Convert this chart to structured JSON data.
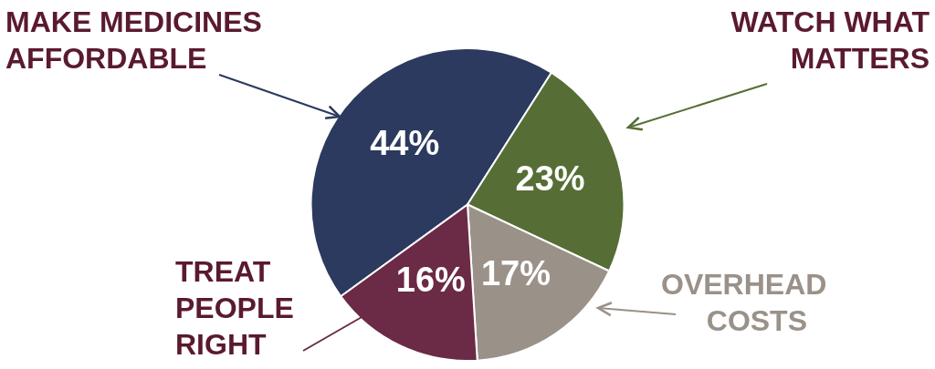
{
  "chart_data": {
    "type": "pie",
    "categories": [
      "MAKE MEDICINES AFFORDABLE",
      "WATCH WHAT MATTERS",
      "OVERHEAD COSTS",
      "TREAT PEOPLE RIGHT"
    ],
    "values": [
      44,
      23,
      17,
      16
    ],
    "colors": [
      "#2b3a5e",
      "#566e35",
      "#9a9189",
      "#6b2a45"
    ],
    "value_labels": [
      "44%",
      "23%",
      "17%",
      "16%"
    ]
  }
}
